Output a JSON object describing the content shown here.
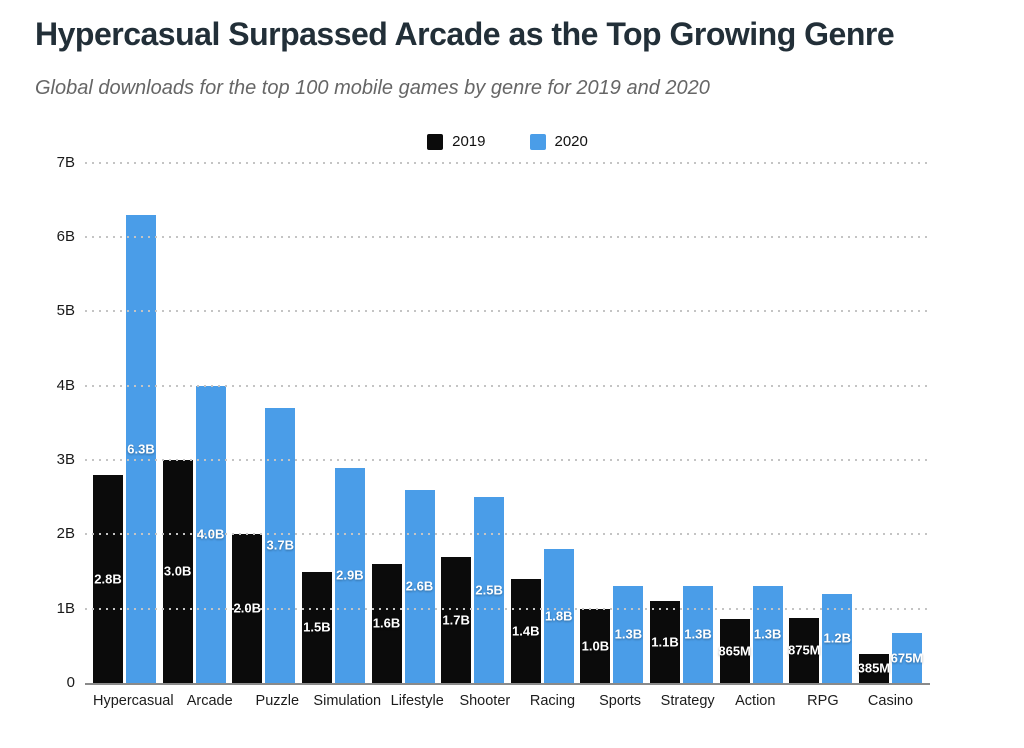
{
  "header": {
    "title": "Hypercasual Surpassed Arcade as the Top Growing Genre",
    "subtitle": "Global downloads for the top 100 mobile games by genre for 2019 and 2020"
  },
  "colors": {
    "series_2019": "#0b0b0b",
    "series_2020": "#4a9de8",
    "title_text": "#222f38",
    "subtitle_text": "#666666",
    "gridline": "#c4c4c4",
    "axis_line": "#8a8a8a"
  },
  "chart_data": {
    "type": "bar",
    "title": "Hypercasual Surpassed Arcade as the Top Growing Genre",
    "subtitle": "Global downloads for the top 100 mobile games by genre for 2019 and 2020",
    "legend_position": "top-center",
    "grid": "horizontal-dotted",
    "ylim": [
      0,
      7000000000
    ],
    "y_ticks": [
      {
        "value": 0,
        "label": "0"
      },
      {
        "value": 1000000000,
        "label": "1B"
      },
      {
        "value": 2000000000,
        "label": "2B"
      },
      {
        "value": 3000000000,
        "label": "3B"
      },
      {
        "value": 4000000000,
        "label": "4B"
      },
      {
        "value": 5000000000,
        "label": "5B"
      },
      {
        "value": 6000000000,
        "label": "6B"
      },
      {
        "value": 7000000000,
        "label": "7B"
      }
    ],
    "categories": [
      "Hypercasual",
      "Arcade",
      "Puzzle",
      "Simulation",
      "Lifestyle",
      "Shooter",
      "Racing",
      "Sports",
      "Strategy",
      "Action",
      "RPG",
      "Casino"
    ],
    "series": [
      {
        "name": "2019",
        "color": "#0b0b0b",
        "values": [
          2800000000,
          3000000000,
          2000000000,
          1500000000,
          1600000000,
          1700000000,
          1400000000,
          1000000000,
          1100000000,
          865000000,
          875000000,
          385000000
        ],
        "labels": [
          "2.8B",
          "3.0B",
          "2.0B",
          "1.5B",
          "1.6B",
          "1.7B",
          "1.4B",
          "1.0B",
          "1.1B",
          "865M",
          "875M",
          "385M"
        ]
      },
      {
        "name": "2020",
        "color": "#4a9de8",
        "values": [
          6300000000,
          4000000000,
          3700000000,
          2900000000,
          2600000000,
          2500000000,
          1800000000,
          1300000000,
          1300000000,
          1300000000,
          1200000000,
          675000000
        ],
        "labels": [
          "6.3B",
          "4.0B",
          "3.7B",
          "2.9B",
          "2.6B",
          "2.5B",
          "1.8B",
          "1.3B",
          "1.3B",
          "1.3B",
          "1.2B",
          "675M"
        ]
      }
    ]
  }
}
